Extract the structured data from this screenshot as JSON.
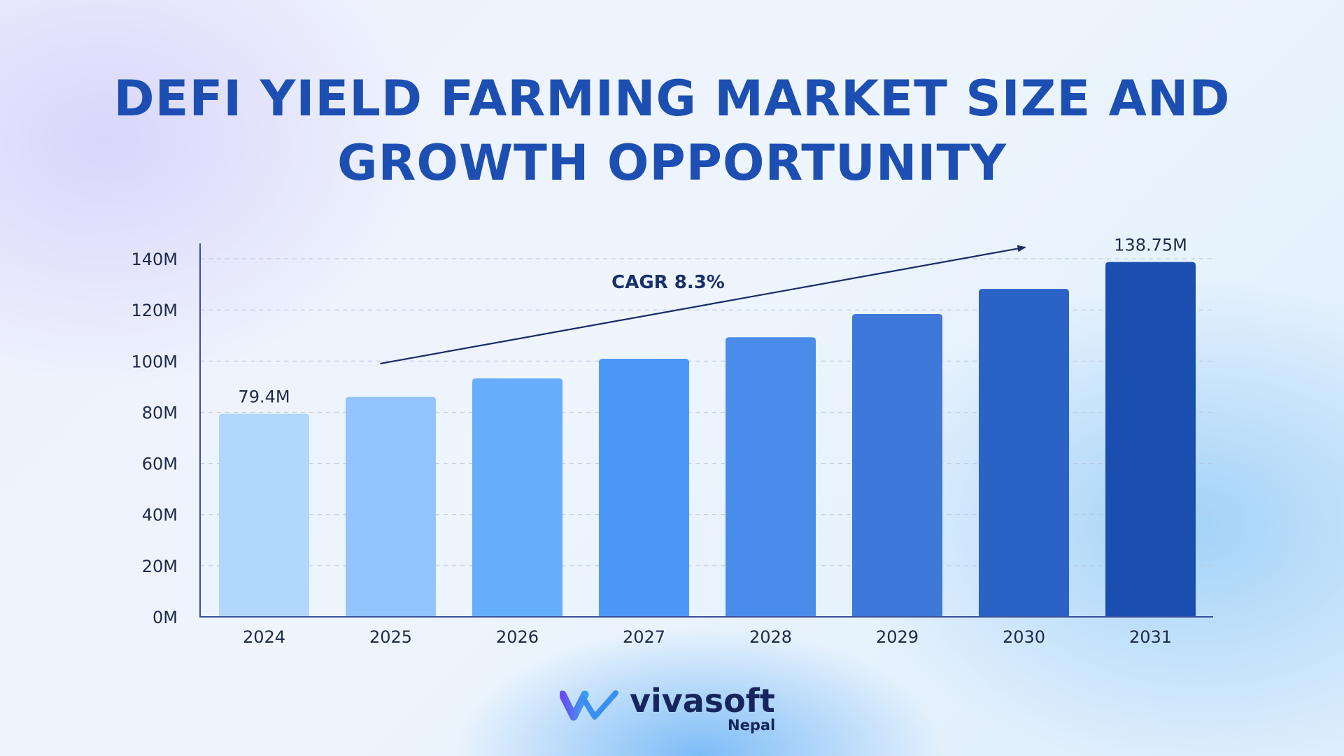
{
  "title_lines": [
    "DEFI YIELD FARMING MARKET SIZE AND",
    "GROWTH OPPORTUNITY"
  ],
  "annotation": {
    "label": "CAGR 8.3%"
  },
  "logo": {
    "wordmark": "vivasoft",
    "subtitle": "Nepal"
  },
  "colors": {
    "title": "#1d4fb3",
    "axis": "#3a4f9a",
    "grid": "#b9c6de",
    "bars": [
      "#b2d7fd",
      "#93c4fb",
      "#66aefb",
      "#4c98f8",
      "#4a8cea",
      "#3e78d9",
      "#2a62c5",
      "#1a4fb0"
    ]
  },
  "chart_data": {
    "type": "bar",
    "title": "DEFI YIELD FARMING MARKET SIZE AND GROWTH OPPORTUNITY",
    "xlabel": "",
    "ylabel": "",
    "categories": [
      "2024",
      "2025",
      "2026",
      "2027",
      "2028",
      "2029",
      "2030",
      "2031"
    ],
    "values": [
      79.4,
      86.0,
      93.2,
      100.9,
      109.3,
      118.4,
      128.2,
      138.75
    ],
    "value_unit": "M",
    "data_labels": [
      {
        "category": "2024",
        "text": "79.4M"
      },
      {
        "category": "2031",
        "text": "138.75M"
      }
    ],
    "ylim": [
      0,
      145
    ],
    "yticks": [
      0,
      20,
      40,
      60,
      80,
      100,
      120,
      140
    ],
    "ytick_labels": [
      "0M",
      "20M",
      "40M",
      "60M",
      "80M",
      "100M",
      "120M",
      "140M"
    ],
    "grid": true,
    "legend": "none"
  }
}
